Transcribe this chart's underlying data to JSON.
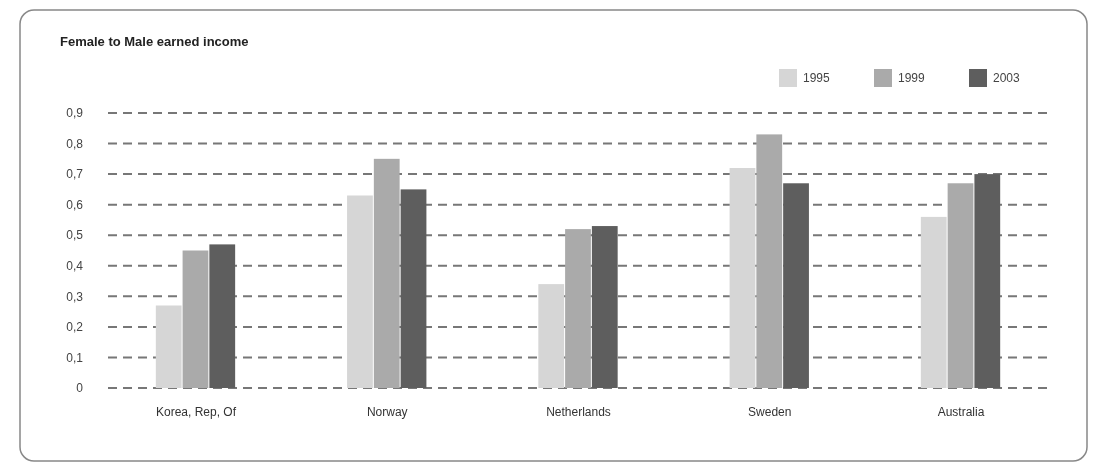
{
  "chart_data": {
    "type": "bar",
    "title": "Female to Male earned income",
    "categories": [
      "Korea, Rep, Of",
      "Norway",
      "Netherlands",
      "Sweden",
      "Australia"
    ],
    "series": [
      {
        "name": "1995",
        "color": "#d6d6d6",
        "values": [
          0.27,
          0.63,
          0.34,
          0.72,
          0.56
        ]
      },
      {
        "name": "1999",
        "color": "#aaaaaa",
        "values": [
          0.45,
          0.75,
          0.52,
          0.83,
          0.67
        ]
      },
      {
        "name": "2003",
        "color": "#5e5e5e",
        "values": [
          0.47,
          0.65,
          0.53,
          0.67,
          0.7
        ]
      }
    ],
    "ylim": [
      0,
      0.9
    ],
    "yticks": [
      {
        "value": 0,
        "label": "0"
      },
      {
        "value": 0.1,
        "label": "0,1"
      },
      {
        "value": 0.2,
        "label": "0,2"
      },
      {
        "value": 0.3,
        "label": "0,3"
      },
      {
        "value": 0.4,
        "label": "0,4"
      },
      {
        "value": 0.5,
        "label": "0,5"
      },
      {
        "value": 0.6,
        "label": "0,6"
      },
      {
        "value": 0.7,
        "label": "0,7"
      },
      {
        "value": 0.8,
        "label": "0,8"
      },
      {
        "value": 0.9,
        "label": "0,9"
      }
    ],
    "grid": "y",
    "legend": "top right"
  }
}
